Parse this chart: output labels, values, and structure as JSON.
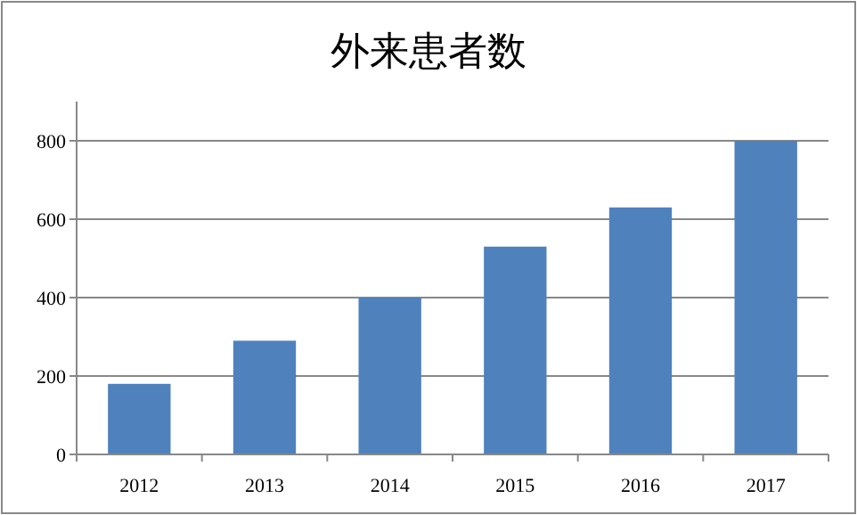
{
  "chart_data": {
    "type": "bar",
    "title": "外来患者数",
    "categories": [
      "2012",
      "2013",
      "2014",
      "2015",
      "2016",
      "2017"
    ],
    "values": [
      180,
      290,
      400,
      530,
      630,
      800
    ],
    "color": "#4f81bd",
    "ylim": [
      0,
      900
    ],
    "yticks": [
      0,
      200,
      400,
      600,
      800
    ],
    "grid": "y"
  }
}
